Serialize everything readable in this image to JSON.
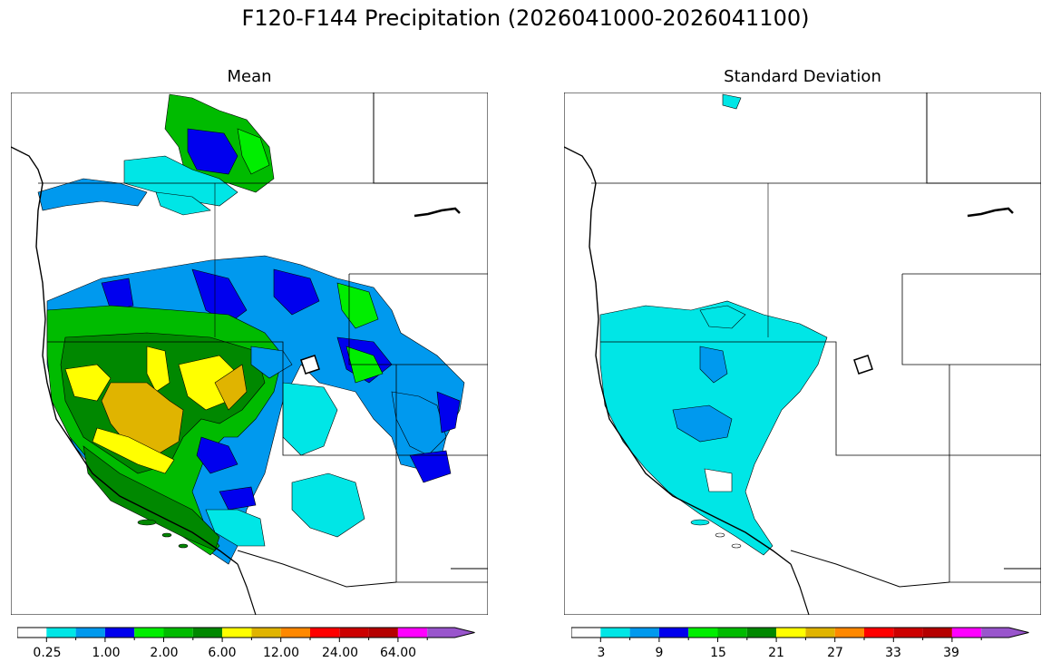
{
  "title": "F120-F144 Precipitation (2026041000-2026041100)",
  "panels": [
    {
      "title": "Mean"
    },
    {
      "title": "Standard Deviation"
    }
  ],
  "colorbar_colors": [
    "#ffffff",
    "#00e6e6",
    "#0099ee",
    "#0000ee",
    "#00ee00",
    "#00bb00",
    "#008800",
    "#ffff00",
    "#e0b400",
    "#ff8800",
    "#ff0000",
    "#cc0000",
    "#b50000",
    "#ff00ff",
    "#9955cc"
  ],
  "colorbars": [
    {
      "labels": [
        "0.25",
        "1.00",
        "2.00",
        "6.00",
        "12.00",
        "24.00",
        "64.00"
      ]
    },
    {
      "labels": [
        "3",
        "9",
        "15",
        "21",
        "27",
        "33",
        "39"
      ]
    }
  ],
  "colors": {
    "white": "#ffffff",
    "cyan": "#00e6e6",
    "lightblue": "#0099ee",
    "blue": "#0000ee",
    "lightgreen": "#00ee00",
    "green": "#00bb00",
    "darkgreen": "#008800",
    "yellow": "#ffff00",
    "gold": "#e0b400"
  }
}
